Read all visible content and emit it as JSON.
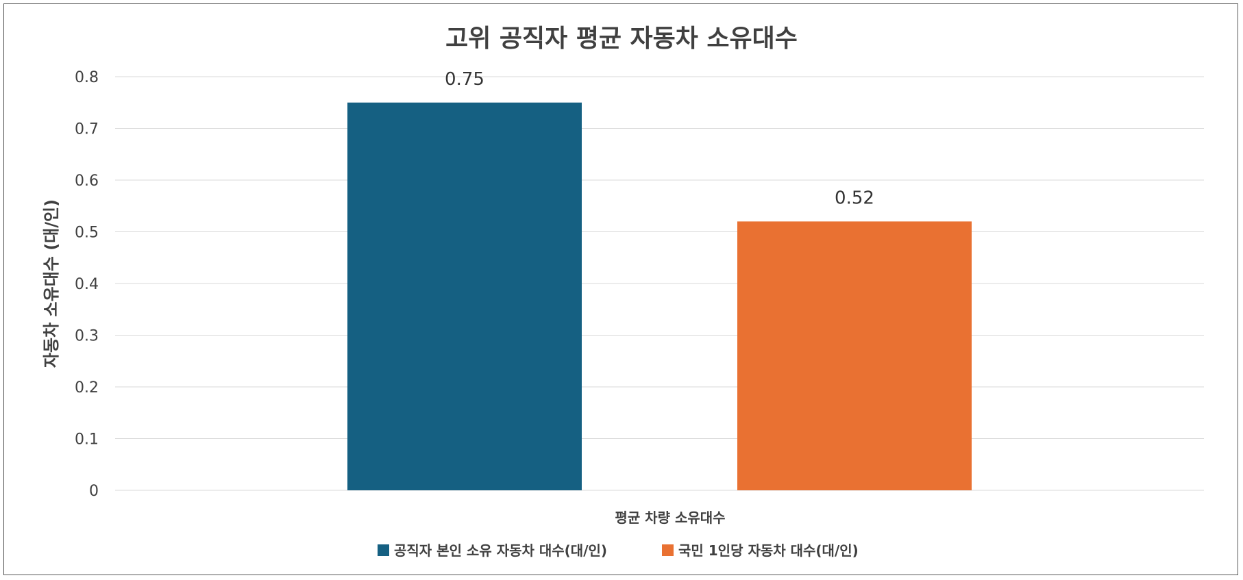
{
  "chart_data": {
    "type": "bar",
    "title": "고위 공직자 평균 자동차 소유대수",
    "xlabel": "평균 차량 소유대수",
    "ylabel": "자동차 소유대수 (대/인)",
    "ylim": [
      0,
      0.8
    ],
    "yticks": [
      "0",
      "0.1",
      "0.2",
      "0.3",
      "0.4",
      "0.5",
      "0.6",
      "0.7",
      "0.8"
    ],
    "grid": true,
    "legend_position": "bottom",
    "series": [
      {
        "name": "공직자 본인 소유 자동차 대수(대/인)",
        "value": 0.75,
        "label": "0.75",
        "color": "#156082"
      },
      {
        "name": "국민 1인당 자동차 대수(대/인)",
        "value": 0.52,
        "label": "0.52",
        "color": "#E97132"
      }
    ]
  }
}
